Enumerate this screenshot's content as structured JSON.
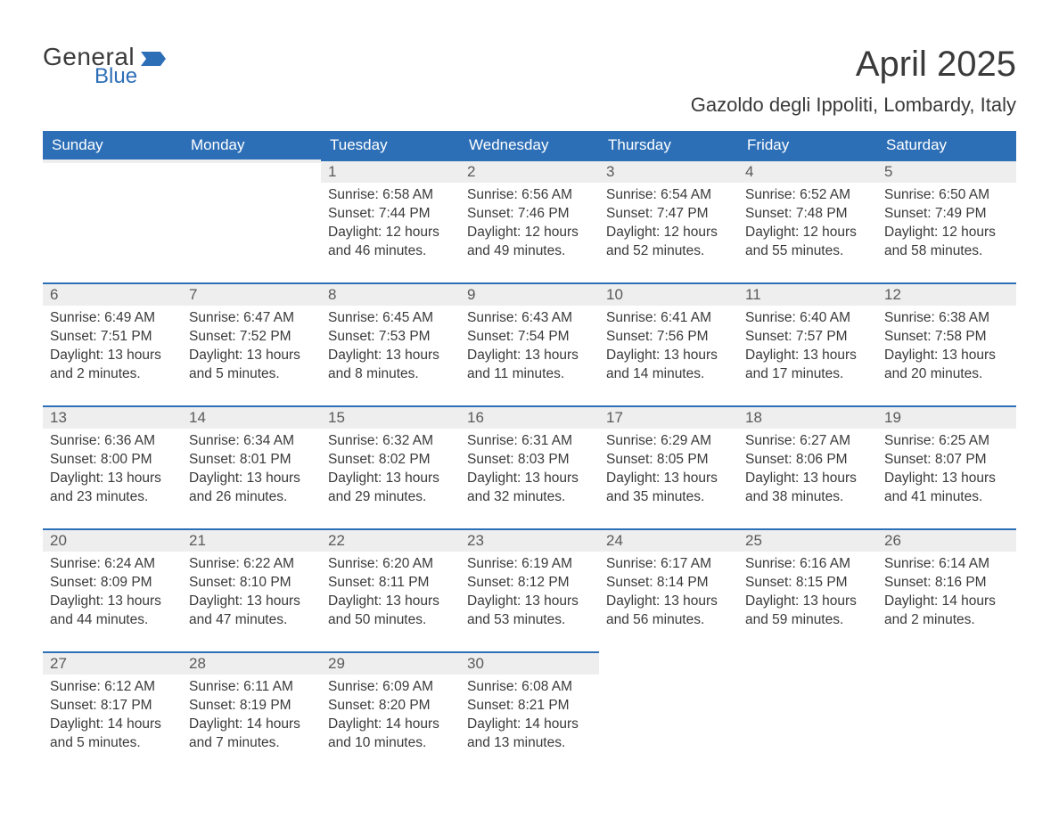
{
  "logo": {
    "general": "General",
    "blue": "Blue",
    "flag_color": "#2d6fb7"
  },
  "title": "April 2025",
  "location": "Gazoldo degli Ippoliti, Lombardy, Italy",
  "colors": {
    "header_bg": "#2d6fb7",
    "header_text": "#ffffff",
    "daynum_bg": "#eeeeee",
    "daynum_border": "#2d6fb7",
    "body_text": "#3a3a3a",
    "page_bg": "#ffffff"
  },
  "typography": {
    "title_fontsize": 40,
    "location_fontsize": 22,
    "header_fontsize": 17,
    "daynum_fontsize": 17,
    "cell_fontsize": 15.5
  },
  "daynames": [
    "Sunday",
    "Monday",
    "Tuesday",
    "Wednesday",
    "Thursday",
    "Friday",
    "Saturday"
  ],
  "weeks": [
    [
      {
        "num": "",
        "sunrise": "",
        "sunset": "",
        "daylight": ""
      },
      {
        "num": "",
        "sunrise": "",
        "sunset": "",
        "daylight": ""
      },
      {
        "num": "1",
        "sunrise": "Sunrise: 6:58 AM",
        "sunset": "Sunset: 7:44 PM",
        "daylight": "Daylight: 12 hours and 46 minutes."
      },
      {
        "num": "2",
        "sunrise": "Sunrise: 6:56 AM",
        "sunset": "Sunset: 7:46 PM",
        "daylight": "Daylight: 12 hours and 49 minutes."
      },
      {
        "num": "3",
        "sunrise": "Sunrise: 6:54 AM",
        "sunset": "Sunset: 7:47 PM",
        "daylight": "Daylight: 12 hours and 52 minutes."
      },
      {
        "num": "4",
        "sunrise": "Sunrise: 6:52 AM",
        "sunset": "Sunset: 7:48 PM",
        "daylight": "Daylight: 12 hours and 55 minutes."
      },
      {
        "num": "5",
        "sunrise": "Sunrise: 6:50 AM",
        "sunset": "Sunset: 7:49 PM",
        "daylight": "Daylight: 12 hours and 58 minutes."
      }
    ],
    [
      {
        "num": "6",
        "sunrise": "Sunrise: 6:49 AM",
        "sunset": "Sunset: 7:51 PM",
        "daylight": "Daylight: 13 hours and 2 minutes."
      },
      {
        "num": "7",
        "sunrise": "Sunrise: 6:47 AM",
        "sunset": "Sunset: 7:52 PM",
        "daylight": "Daylight: 13 hours and 5 minutes."
      },
      {
        "num": "8",
        "sunrise": "Sunrise: 6:45 AM",
        "sunset": "Sunset: 7:53 PM",
        "daylight": "Daylight: 13 hours and 8 minutes."
      },
      {
        "num": "9",
        "sunrise": "Sunrise: 6:43 AM",
        "sunset": "Sunset: 7:54 PM",
        "daylight": "Daylight: 13 hours and 11 minutes."
      },
      {
        "num": "10",
        "sunrise": "Sunrise: 6:41 AM",
        "sunset": "Sunset: 7:56 PM",
        "daylight": "Daylight: 13 hours and 14 minutes."
      },
      {
        "num": "11",
        "sunrise": "Sunrise: 6:40 AM",
        "sunset": "Sunset: 7:57 PM",
        "daylight": "Daylight: 13 hours and 17 minutes."
      },
      {
        "num": "12",
        "sunrise": "Sunrise: 6:38 AM",
        "sunset": "Sunset: 7:58 PM",
        "daylight": "Daylight: 13 hours and 20 minutes."
      }
    ],
    [
      {
        "num": "13",
        "sunrise": "Sunrise: 6:36 AM",
        "sunset": "Sunset: 8:00 PM",
        "daylight": "Daylight: 13 hours and 23 minutes."
      },
      {
        "num": "14",
        "sunrise": "Sunrise: 6:34 AM",
        "sunset": "Sunset: 8:01 PM",
        "daylight": "Daylight: 13 hours and 26 minutes."
      },
      {
        "num": "15",
        "sunrise": "Sunrise: 6:32 AM",
        "sunset": "Sunset: 8:02 PM",
        "daylight": "Daylight: 13 hours and 29 minutes."
      },
      {
        "num": "16",
        "sunrise": "Sunrise: 6:31 AM",
        "sunset": "Sunset: 8:03 PM",
        "daylight": "Daylight: 13 hours and 32 minutes."
      },
      {
        "num": "17",
        "sunrise": "Sunrise: 6:29 AM",
        "sunset": "Sunset: 8:05 PM",
        "daylight": "Daylight: 13 hours and 35 minutes."
      },
      {
        "num": "18",
        "sunrise": "Sunrise: 6:27 AM",
        "sunset": "Sunset: 8:06 PM",
        "daylight": "Daylight: 13 hours and 38 minutes."
      },
      {
        "num": "19",
        "sunrise": "Sunrise: 6:25 AM",
        "sunset": "Sunset: 8:07 PM",
        "daylight": "Daylight: 13 hours and 41 minutes."
      }
    ],
    [
      {
        "num": "20",
        "sunrise": "Sunrise: 6:24 AM",
        "sunset": "Sunset: 8:09 PM",
        "daylight": "Daylight: 13 hours and 44 minutes."
      },
      {
        "num": "21",
        "sunrise": "Sunrise: 6:22 AM",
        "sunset": "Sunset: 8:10 PM",
        "daylight": "Daylight: 13 hours and 47 minutes."
      },
      {
        "num": "22",
        "sunrise": "Sunrise: 6:20 AM",
        "sunset": "Sunset: 8:11 PM",
        "daylight": "Daylight: 13 hours and 50 minutes."
      },
      {
        "num": "23",
        "sunrise": "Sunrise: 6:19 AM",
        "sunset": "Sunset: 8:12 PM",
        "daylight": "Daylight: 13 hours and 53 minutes."
      },
      {
        "num": "24",
        "sunrise": "Sunrise: 6:17 AM",
        "sunset": "Sunset: 8:14 PM",
        "daylight": "Daylight: 13 hours and 56 minutes."
      },
      {
        "num": "25",
        "sunrise": "Sunrise: 6:16 AM",
        "sunset": "Sunset: 8:15 PM",
        "daylight": "Daylight: 13 hours and 59 minutes."
      },
      {
        "num": "26",
        "sunrise": "Sunrise: 6:14 AM",
        "sunset": "Sunset: 8:16 PM",
        "daylight": "Daylight: 14 hours and 2 minutes."
      }
    ],
    [
      {
        "num": "27",
        "sunrise": "Sunrise: 6:12 AM",
        "sunset": "Sunset: 8:17 PM",
        "daylight": "Daylight: 14 hours and 5 minutes."
      },
      {
        "num": "28",
        "sunrise": "Sunrise: 6:11 AM",
        "sunset": "Sunset: 8:19 PM",
        "daylight": "Daylight: 14 hours and 7 minutes."
      },
      {
        "num": "29",
        "sunrise": "Sunrise: 6:09 AM",
        "sunset": "Sunset: 8:20 PM",
        "daylight": "Daylight: 14 hours and 10 minutes."
      },
      {
        "num": "30",
        "sunrise": "Sunrise: 6:08 AM",
        "sunset": "Sunset: 8:21 PM",
        "daylight": "Daylight: 14 hours and 13 minutes."
      },
      {
        "num": "",
        "sunrise": "",
        "sunset": "",
        "daylight": ""
      },
      {
        "num": "",
        "sunrise": "",
        "sunset": "",
        "daylight": ""
      },
      {
        "num": "",
        "sunrise": "",
        "sunset": "",
        "daylight": ""
      }
    ]
  ]
}
